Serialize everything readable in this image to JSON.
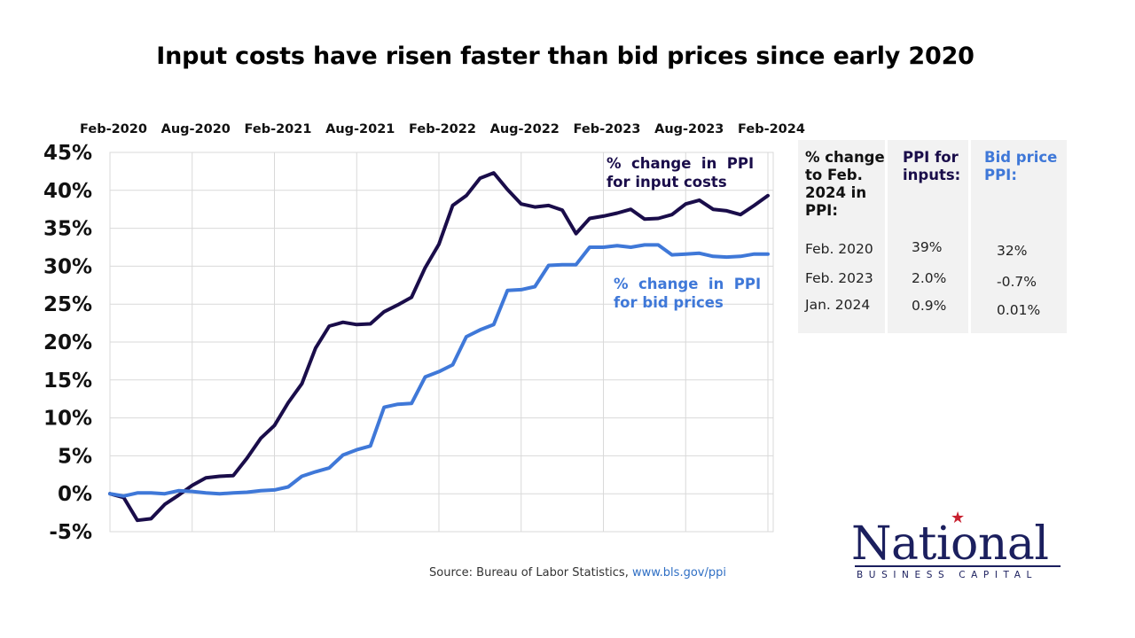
{
  "chart_data": {
    "type": "line",
    "title": "Input costs have risen faster than bid prices since early 2020",
    "x_tick_labels": [
      "Feb-2020",
      "Aug-2020",
      "Feb-2021",
      "Aug-2021",
      "Feb-2022",
      "Aug-2022",
      "Feb-2023",
      "Aug-2023",
      "Feb-2024"
    ],
    "y_tick_labels": [
      "45%",
      "40%",
      "35%",
      "30%",
      "25%",
      "20%",
      "15%",
      "10%",
      "5%",
      "0%",
      "-5%"
    ],
    "ylim": [
      -5,
      45
    ],
    "x_range": [
      "2020-02",
      "2024-02"
    ],
    "grid": true,
    "series": [
      {
        "name": "% change in PPI for input costs",
        "color": "#1a0d4a",
        "points": [
          [
            "2020-02",
            0.0
          ],
          [
            "2020-03",
            -0.5
          ],
          [
            "2020-04",
            -3.5
          ],
          [
            "2020-05",
            -3.3
          ],
          [
            "2020-06",
            -1.4
          ],
          [
            "2020-07",
            -0.2
          ],
          [
            "2020-08",
            1.1
          ],
          [
            "2020-09",
            2.1
          ],
          [
            "2020-10",
            2.3
          ],
          [
            "2020-11",
            2.4
          ],
          [
            "2020-12",
            4.7
          ],
          [
            "2021-01",
            7.3
          ],
          [
            "2021-02",
            9.0
          ],
          [
            "2021-03",
            12.0
          ],
          [
            "2021-04",
            14.5
          ],
          [
            "2021-05",
            19.2
          ],
          [
            "2021-06",
            22.1
          ],
          [
            "2021-07",
            22.6
          ],
          [
            "2021-08",
            22.3
          ],
          [
            "2021-09",
            22.4
          ],
          [
            "2021-10",
            24.0
          ],
          [
            "2021-11",
            24.9
          ],
          [
            "2021-12",
            25.9
          ],
          [
            "2022-01",
            29.8
          ],
          [
            "2022-02",
            32.9
          ],
          [
            "2022-03",
            38.0
          ],
          [
            "2022-04",
            39.3
          ],
          [
            "2022-05",
            41.6
          ],
          [
            "2022-06",
            42.3
          ],
          [
            "2022-07",
            40.1
          ],
          [
            "2022-08",
            38.2
          ],
          [
            "2022-09",
            37.8
          ],
          [
            "2022-10",
            38.0
          ],
          [
            "2022-11",
            37.4
          ],
          [
            "2022-12",
            34.3
          ],
          [
            "2023-01",
            36.3
          ],
          [
            "2023-02",
            36.6
          ],
          [
            "2023-03",
            37.0
          ],
          [
            "2023-04",
            37.5
          ],
          [
            "2023-05",
            36.2
          ],
          [
            "2023-06",
            36.3
          ],
          [
            "2023-07",
            36.8
          ],
          [
            "2023-08",
            38.2
          ],
          [
            "2023-09",
            38.7
          ],
          [
            "2023-10",
            37.5
          ],
          [
            "2023-11",
            37.3
          ],
          [
            "2023-12",
            36.8
          ],
          [
            "2024-01",
            38.0
          ],
          [
            "2024-02",
            39.3
          ]
        ]
      },
      {
        "name": "% change in PPI for bid prices",
        "color": "#3f78d8",
        "points": [
          [
            "2020-02",
            0.0
          ],
          [
            "2020-03",
            -0.3
          ],
          [
            "2020-04",
            0.1
          ],
          [
            "2020-05",
            0.1
          ],
          [
            "2020-06",
            0.0
          ],
          [
            "2020-07",
            0.4
          ],
          [
            "2020-08",
            0.3
          ],
          [
            "2020-09",
            0.1
          ],
          [
            "2020-10",
            0.0
          ],
          [
            "2020-11",
            0.1
          ],
          [
            "2020-12",
            0.2
          ],
          [
            "2021-01",
            0.4
          ],
          [
            "2021-02",
            0.5
          ],
          [
            "2021-03",
            0.9
          ],
          [
            "2021-04",
            2.3
          ],
          [
            "2021-05",
            2.9
          ],
          [
            "2021-06",
            3.4
          ],
          [
            "2021-07",
            5.1
          ],
          [
            "2021-08",
            5.8
          ],
          [
            "2021-09",
            6.3
          ],
          [
            "2021-10",
            11.4
          ],
          [
            "2021-11",
            11.8
          ],
          [
            "2021-12",
            11.9
          ],
          [
            "2022-01",
            15.4
          ],
          [
            "2022-02",
            16.1
          ],
          [
            "2022-03",
            17.0
          ],
          [
            "2022-04",
            20.7
          ],
          [
            "2022-05",
            21.6
          ],
          [
            "2022-06",
            22.3
          ],
          [
            "2022-07",
            26.8
          ],
          [
            "2022-08",
            26.9
          ],
          [
            "2022-09",
            27.3
          ],
          [
            "2022-10",
            30.1
          ],
          [
            "2022-11",
            30.2
          ],
          [
            "2022-12",
            30.2
          ],
          [
            "2023-01",
            32.5
          ],
          [
            "2023-02",
            32.5
          ],
          [
            "2023-03",
            32.7
          ],
          [
            "2023-04",
            32.5
          ],
          [
            "2023-05",
            32.8
          ],
          [
            "2023-06",
            32.8
          ],
          [
            "2023-07",
            31.5
          ],
          [
            "2023-08",
            31.6
          ],
          [
            "2023-09",
            31.7
          ],
          [
            "2023-10",
            31.3
          ],
          [
            "2023-11",
            31.2
          ],
          [
            "2023-12",
            31.3
          ],
          [
            "2024-01",
            31.6
          ],
          [
            "2024-02",
            31.6
          ]
        ]
      }
    ],
    "annotations": [
      {
        "lines": [
          "%  change  in  PPI",
          "for input costs"
        ],
        "color": "#1a0d4a"
      },
      {
        "lines": [
          "%  change  in  PPI",
          "for bid prices"
        ],
        "color": "#3f78d8"
      }
    ]
  },
  "table": {
    "headers": [
      {
        "text": "% change\nto Feb.\n2024 in\nPPI:",
        "color": "#111111"
      },
      {
        "text": "PPI for\ninputs:",
        "color": "#1a0d4a"
      },
      {
        "text": "Bid price\nPPI:",
        "color": "#3f78d8"
      }
    ],
    "rows": [
      [
        "Feb. 2020",
        "39%",
        "32%"
      ],
      [
        "Feb. 2023",
        "2.0%",
        "-0.7%"
      ],
      [
        "Jan. 2024",
        "0.9%",
        "0.01%"
      ]
    ]
  },
  "source": {
    "prefix": "Source: Bureau of Labor Statistics, ",
    "link": "www.bls.gov/ppi"
  },
  "logo": {
    "word": "National",
    "sub": "BUSINESS CAPITAL",
    "primary_color": "#1b1f5e",
    "star_color": "#c8202f"
  }
}
